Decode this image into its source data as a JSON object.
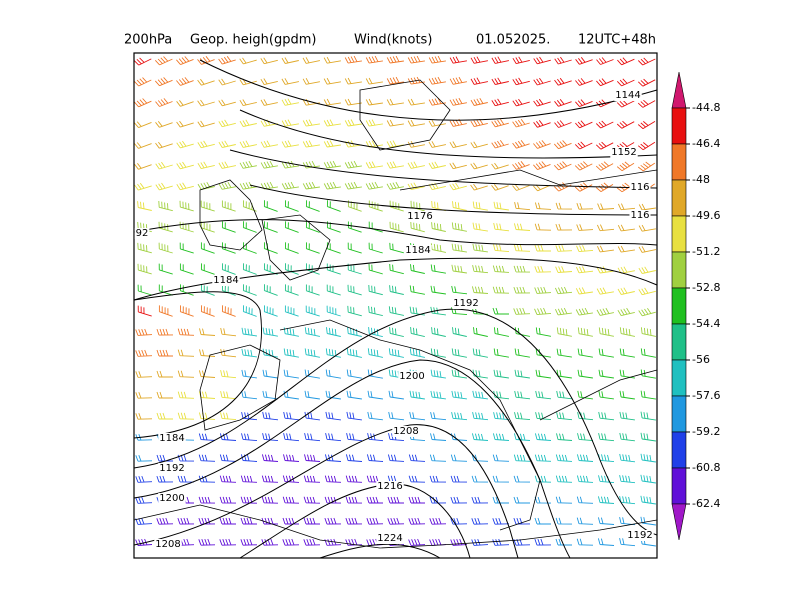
{
  "title": {
    "level": "200hPa",
    "field": "Geop. heigh(gpdm)",
    "wind": "Wind(knots)",
    "date": "01.052025.",
    "run": "12UTC+48h"
  },
  "contour_labels": [
    "1144",
    "1152",
    "116",
    "116",
    "1176",
    "1184",
    "92",
    "1184",
    "1192",
    "1200",
    "1208",
    "1216",
    "1224",
    "1184",
    "1192",
    "1200",
    "1208",
    "1192"
  ],
  "colorbar": {
    "ticks": [
      -44.8,
      -46.4,
      -48,
      -49.6,
      -51.2,
      -52.8,
      -54.4,
      -56,
      -57.6,
      -59.2,
      -60.8,
      -62.4
    ],
    "colors": [
      "#d0186e",
      "#e81010",
      "#f07828",
      "#e0a828",
      "#e8e040",
      "#a0d040",
      "#20c020",
      "#20c088",
      "#20c0c0",
      "#2098e0",
      "#2040e8",
      "#6010d8",
      "#a018c8"
    ]
  }
}
